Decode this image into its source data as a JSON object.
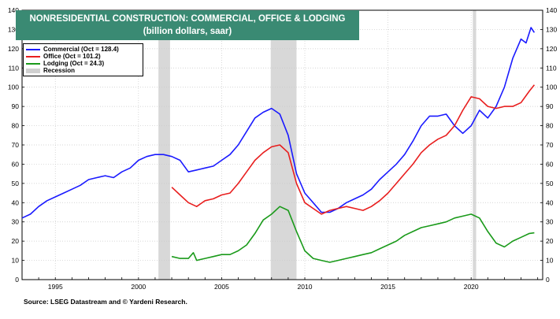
{
  "title_line1": "NONRESIDENTIAL CONSTRUCTION: COMMERCIAL, OFFICE & LODGING",
  "title_line2": "(billion dollars, saar)",
  "source": "Source: LSEG Datastream and © Yardeni Research.",
  "colors": {
    "commercial": "#1a1aff",
    "office": "#e81e1e",
    "lodging": "#1a9a1a",
    "recession": "#d8d8d8",
    "title_bg": "#3a8a73"
  },
  "chart_data": {
    "type": "line",
    "xlim": [
      1993.0,
      2024.3
    ],
    "ylim": [
      0,
      140
    ],
    "yticks": [
      0,
      10,
      20,
      30,
      40,
      50,
      60,
      70,
      80,
      90,
      100,
      110,
      120,
      130,
      140
    ],
    "xtick_labels": [
      "1995",
      "2000",
      "2005",
      "2010",
      "2015",
      "2020"
    ],
    "xtick_values": [
      1995,
      2000,
      2005,
      2010,
      2015,
      2020
    ],
    "grid": true,
    "legend_position": "top-left",
    "recessions": [
      [
        2001.2,
        2001.9
      ],
      [
        2007.95,
        2009.5
      ],
      [
        2020.1,
        2020.3
      ]
    ],
    "legend": [
      {
        "label": "Commercial (Oct =  128.4)"
      },
      {
        "label": "Office (Oct = 101.2)"
      },
      {
        "label": "Lodging (Oct = 24.3)"
      },
      {
        "label": "Recession"
      }
    ],
    "series": [
      {
        "name": "Commercial",
        "color": "#1a1aff",
        "x": [
          1993.0,
          1993.5,
          1994.0,
          1994.5,
          1995.0,
          1995.5,
          1996.0,
          1996.5,
          1997.0,
          1997.5,
          1998.0,
          1998.5,
          1999.0,
          1999.5,
          2000.0,
          2000.5,
          2001.0,
          2001.5,
          2002.0,
          2002.5,
          2003.0,
          2003.5,
          2004.0,
          2004.5,
          2005.0,
          2005.5,
          2006.0,
          2006.5,
          2007.0,
          2007.5,
          2008.0,
          2008.5,
          2009.0,
          2009.5,
          2010.0,
          2010.5,
          2011.0,
          2011.5,
          2012.0,
          2012.5,
          2013.0,
          2013.5,
          2014.0,
          2014.5,
          2015.0,
          2015.5,
          2016.0,
          2016.5,
          2017.0,
          2017.5,
          2018.0,
          2018.5,
          2019.0,
          2019.5,
          2020.0,
          2020.5,
          2021.0,
          2021.5,
          2022.0,
          2022.5,
          2023.0,
          2023.3,
          2023.6,
          2023.8
        ],
        "values": [
          32,
          34,
          38,
          41,
          43,
          45,
          47,
          49,
          52,
          53,
          54,
          53,
          56,
          58,
          62,
          64,
          65,
          65,
          64,
          62,
          56,
          57,
          58,
          59,
          62,
          65,
          70,
          77,
          84,
          87,
          89,
          86,
          75,
          55,
          45,
          40,
          35,
          35,
          37,
          40,
          42,
          44,
          47,
          52,
          56,
          60,
          65,
          72,
          80,
          85,
          85,
          86,
          80,
          76,
          80,
          88,
          84,
          90,
          100,
          115,
          125,
          123,
          131,
          128.4
        ]
      },
      {
        "name": "Office",
        "color": "#e81e1e",
        "x": [
          2002.0,
          2002.5,
          2003.0,
          2003.5,
          2004.0,
          2004.5,
          2005.0,
          2005.5,
          2006.0,
          2006.5,
          2007.0,
          2007.5,
          2008.0,
          2008.5,
          2009.0,
          2009.5,
          2010.0,
          2010.5,
          2011.0,
          2011.5,
          2012.0,
          2012.5,
          2013.0,
          2013.5,
          2014.0,
          2014.5,
          2015.0,
          2015.5,
          2016.0,
          2016.5,
          2017.0,
          2017.5,
          2018.0,
          2018.5,
          2019.0,
          2019.5,
          2020.0,
          2020.5,
          2021.0,
          2021.5,
          2022.0,
          2022.5,
          2023.0,
          2023.5,
          2023.8
        ],
        "values": [
          48,
          44,
          40,
          38,
          41,
          42,
          44,
          45,
          50,
          56,
          62,
          66,
          69,
          70,
          66,
          50,
          40,
          37,
          34,
          36,
          37,
          38,
          37,
          36,
          38,
          41,
          45,
          50,
          55,
          60,
          66,
          70,
          73,
          75,
          80,
          88,
          95,
          94,
          90,
          89,
          90,
          90,
          92,
          98,
          101.2
        ]
      },
      {
        "name": "Lodging",
        "color": "#1a9a1a",
        "x": [
          2002.0,
          2002.5,
          2003.0,
          2003.3,
          2003.5,
          2004.0,
          2004.5,
          2005.0,
          2005.5,
          2006.0,
          2006.5,
          2007.0,
          2007.5,
          2008.0,
          2008.5,
          2009.0,
          2009.5,
          2010.0,
          2010.5,
          2011.0,
          2011.5,
          2012.0,
          2012.5,
          2013.0,
          2013.5,
          2014.0,
          2014.5,
          2015.0,
          2015.5,
          2016.0,
          2016.5,
          2017.0,
          2017.5,
          2018.0,
          2018.5,
          2019.0,
          2019.5,
          2020.0,
          2020.5,
          2021.0,
          2021.5,
          2022.0,
          2022.5,
          2023.0,
          2023.5,
          2023.8
        ],
        "values": [
          12,
          11,
          11,
          14,
          10,
          11,
          12,
          13,
          13,
          15,
          18,
          24,
          31,
          34,
          38,
          36,
          25,
          15,
          11,
          10,
          9,
          10,
          11,
          12,
          13,
          14,
          16,
          18,
          20,
          23,
          25,
          27,
          28,
          29,
          30,
          32,
          33,
          34,
          32,
          25,
          19,
          17,
          20,
          22,
          24,
          24.3
        ]
      }
    ]
  }
}
